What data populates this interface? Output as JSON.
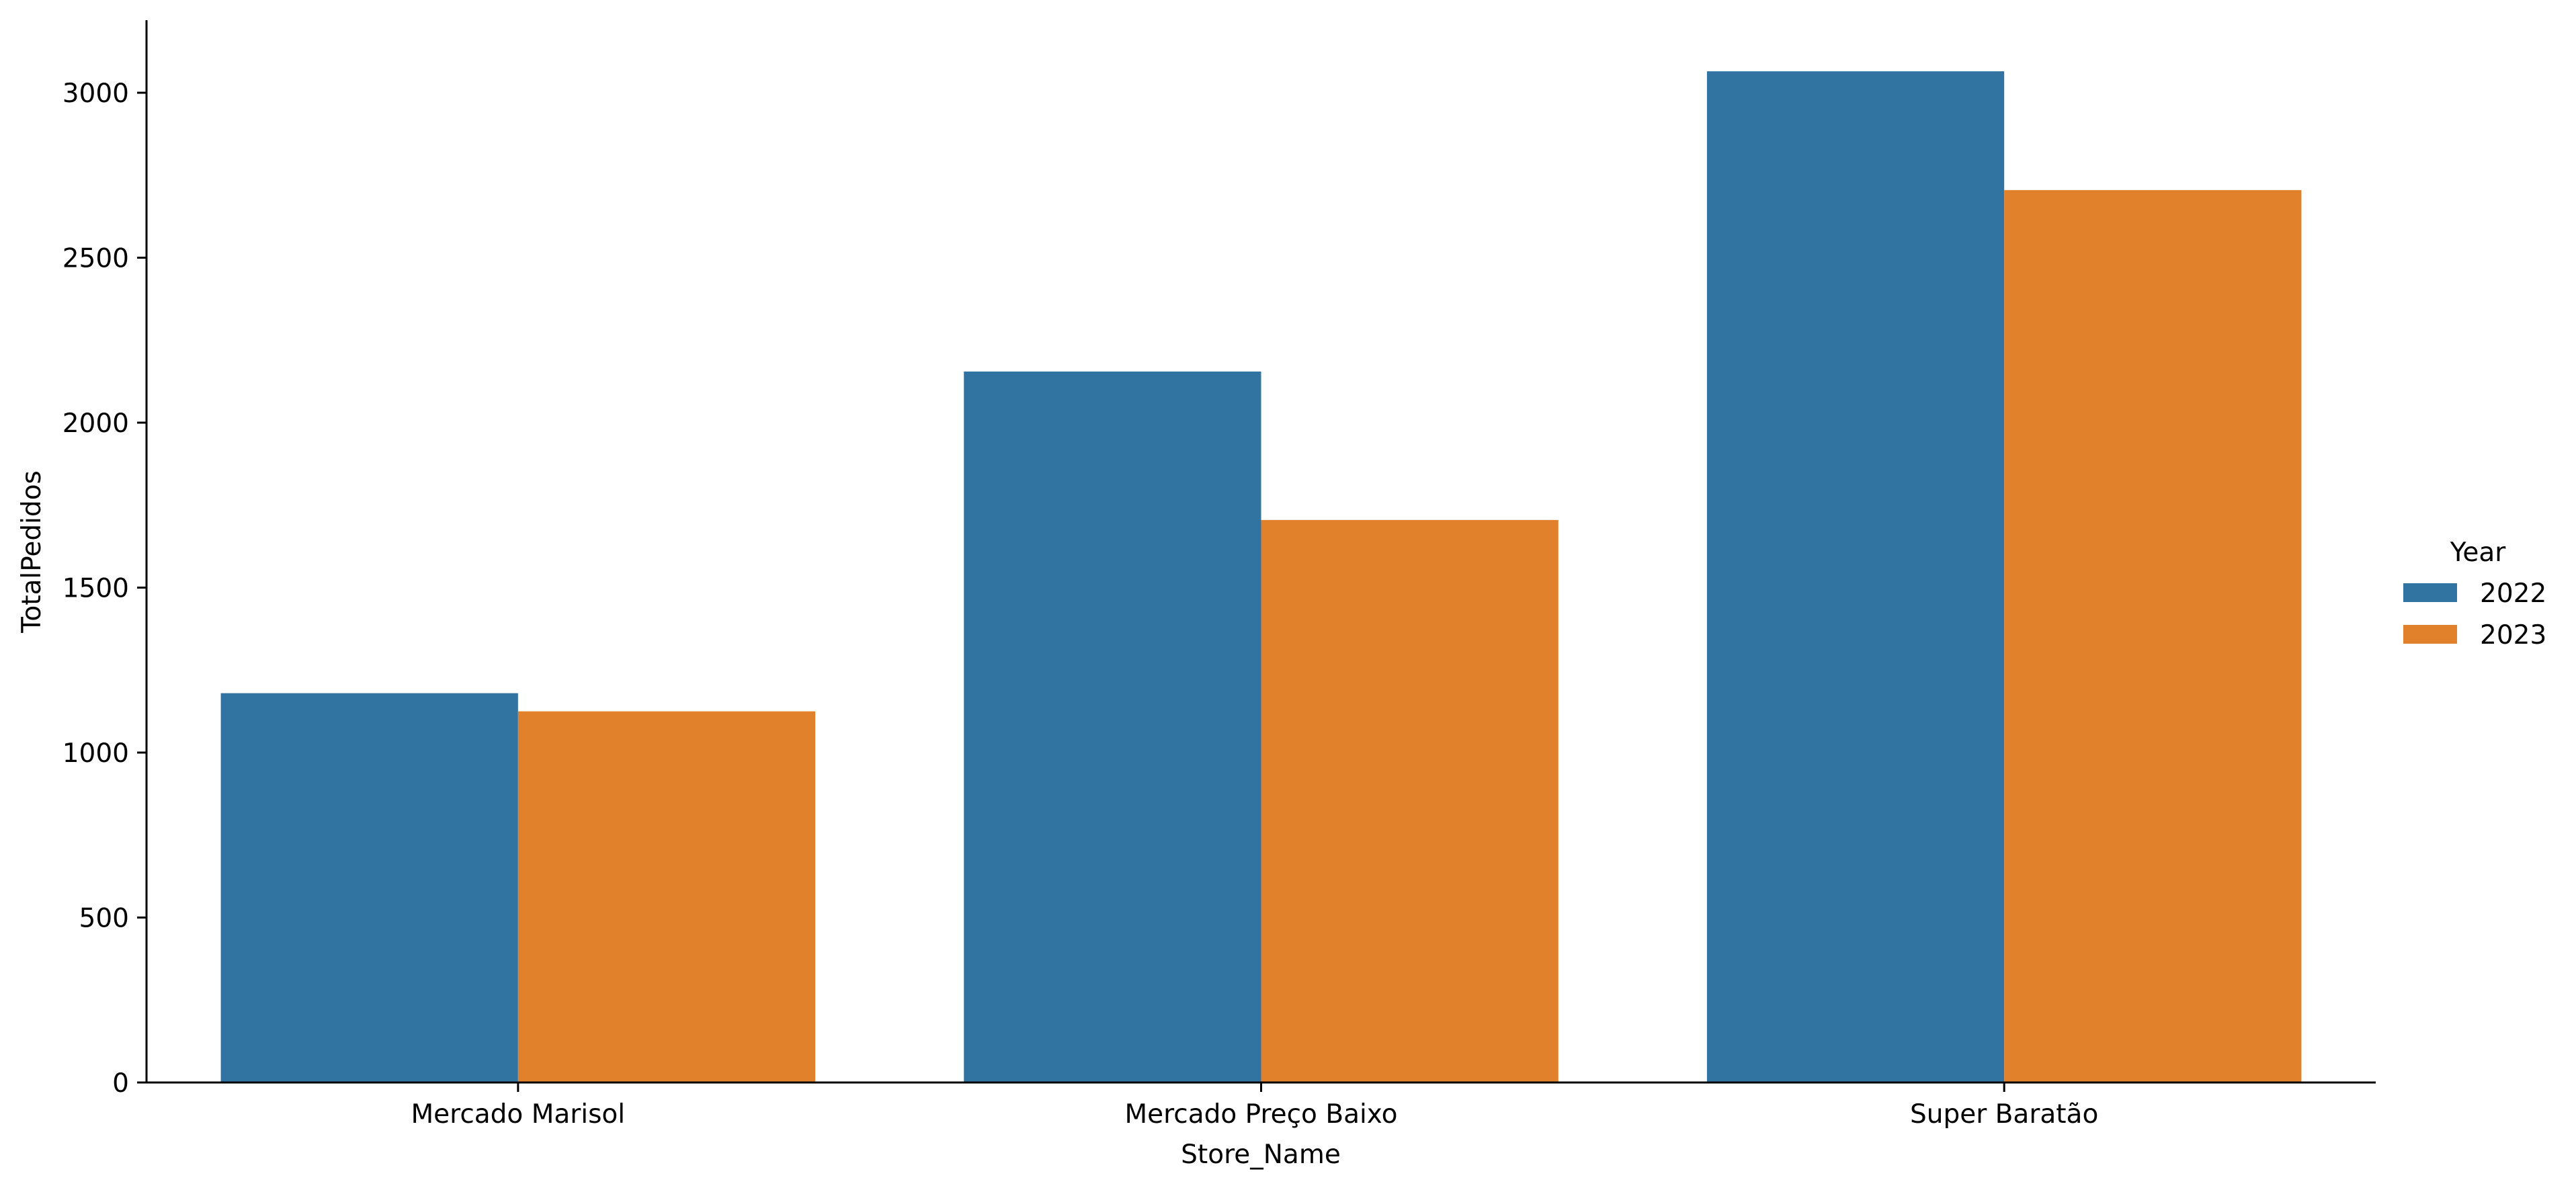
{
  "chart_data": {
    "type": "bar",
    "categories": [
      "Mercado Marisol",
      "Mercado Preço Baixo",
      "Super Baratão"
    ],
    "series": [
      {
        "name": "2022",
        "values": [
          1180,
          2155,
          3065
        ],
        "color": "#3274a1"
      },
      {
        "name": "2023",
        "values": [
          1125,
          1705,
          2705
        ],
        "color": "#e1812c"
      }
    ],
    "xlabel": "Store_Name",
    "ylabel": "TotalPedidos",
    "ylim": [
      0,
      3220
    ],
    "yticks": [
      0,
      500,
      1000,
      1500,
      2000,
      2500,
      3000
    ],
    "ytick_labels": [
      "0",
      "500",
      "1000",
      "1500",
      "2000",
      "2500",
      "3000"
    ],
    "legend": {
      "title": "Year",
      "placement": "right",
      "entries": [
        "2022",
        "2023"
      ]
    },
    "grid": false
  }
}
